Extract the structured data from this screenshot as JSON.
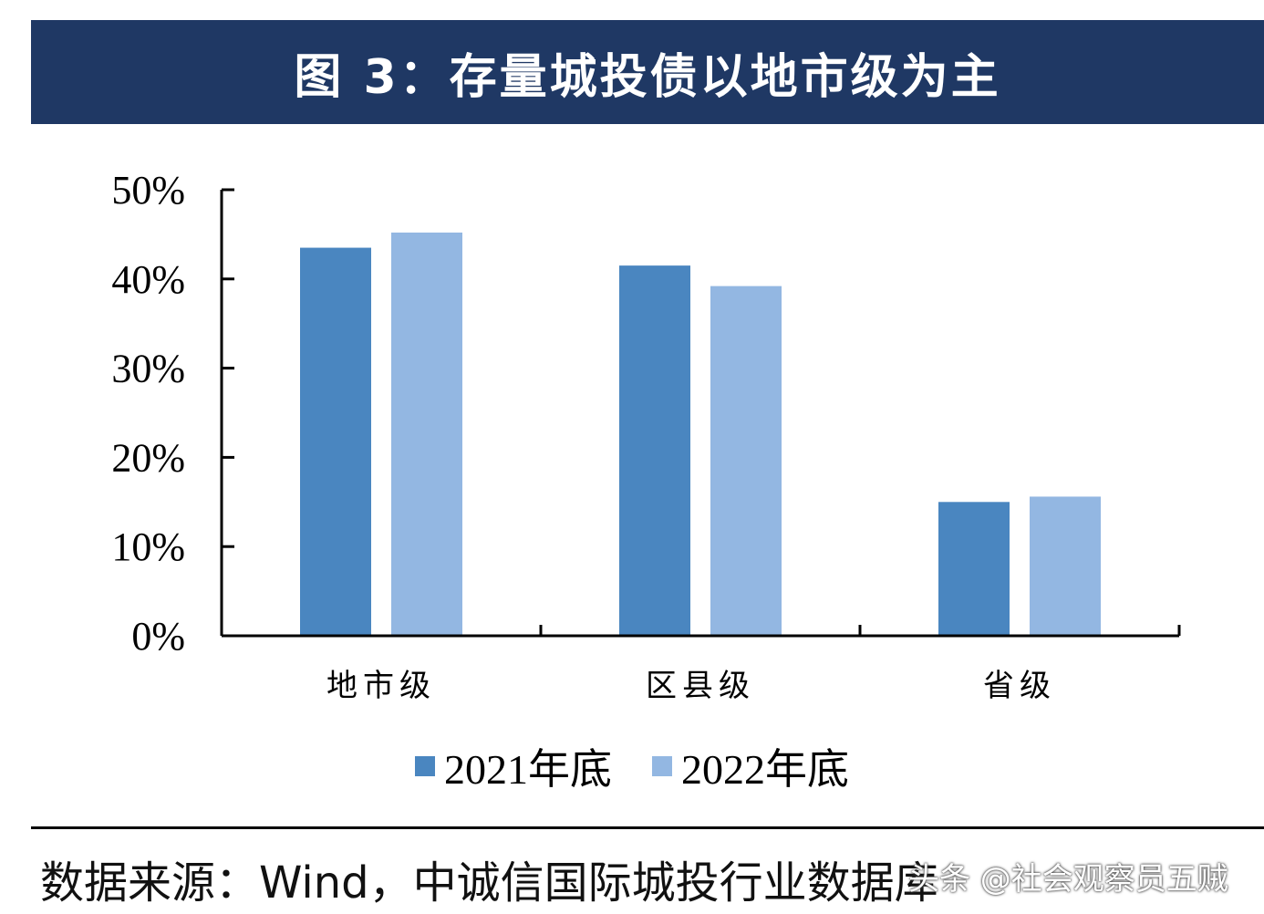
{
  "title": "图 3：存量城投债以地市级为主",
  "chart_data": {
    "type": "bar",
    "title": "",
    "xlabel": "",
    "ylabel": "",
    "categories": [
      "地市级",
      "区县级",
      "省级"
    ],
    "series": [
      {
        "name": "2021年底",
        "values": [
          43.5,
          41.5,
          15.0
        ],
        "color": "#4a86c0"
      },
      {
        "name": "2022年底",
        "values": [
          45.2,
          39.2,
          15.6
        ],
        "color": "#93b7e2"
      }
    ],
    "ylim": [
      0,
      50
    ],
    "yticks": [
      "0%",
      "10%",
      "20%",
      "30%",
      "40%",
      "50%"
    ],
    "grid": false,
    "legend": "bottom"
  },
  "source": "数据来源：Wind，中诚信国际城投行业数据库",
  "watermark": "头条 @社会观察员五贼"
}
